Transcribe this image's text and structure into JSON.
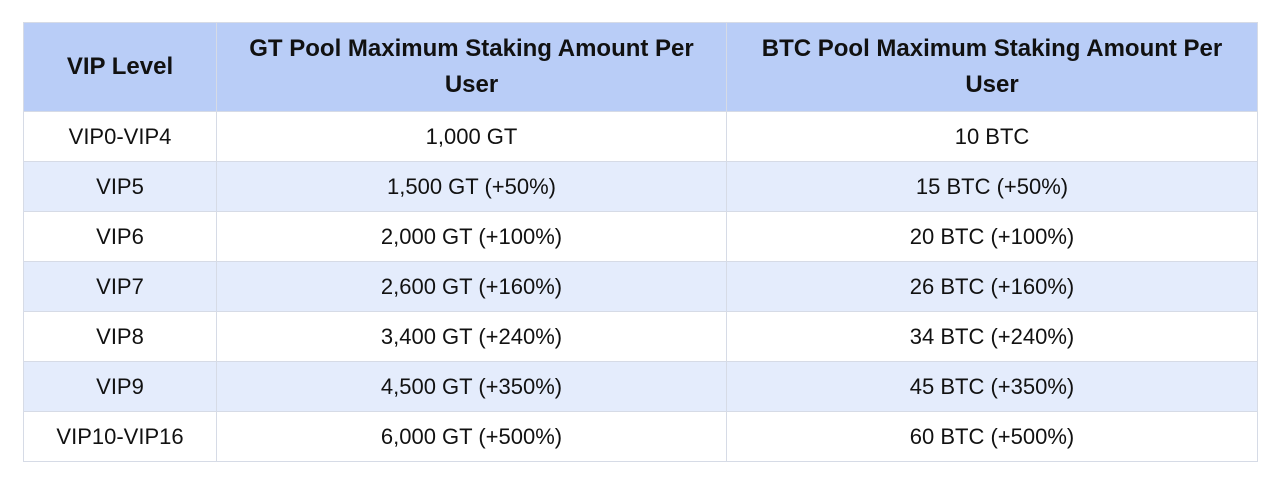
{
  "table": {
    "header": [
      "VIP Level",
      "GT Pool Maximum Staking Amount Per User",
      "BTC Pool Maximum Staking Amount Per User"
    ],
    "rows": [
      [
        "VIP0-VIP4",
        "1,000 GT",
        "10 BTC"
      ],
      [
        "VIP5",
        "1,500 GT (+50%)",
        "15 BTC (+50%)"
      ],
      [
        "VIP6",
        "2,000 GT (+100%)",
        "20 BTC (+100%)"
      ],
      [
        "VIP7",
        "2,600 GT (+160%)",
        "26 BTC (+160%)"
      ],
      [
        "VIP8",
        "3,400 GT (+240%)",
        "34 BTC (+240%)"
      ],
      [
        "VIP9",
        "4,500 GT (+350%)",
        "45 BTC (+350%)"
      ],
      [
        "VIP10-VIP16",
        "6,000 GT (+500%)",
        "60 BTC (+500%)"
      ]
    ]
  }
}
